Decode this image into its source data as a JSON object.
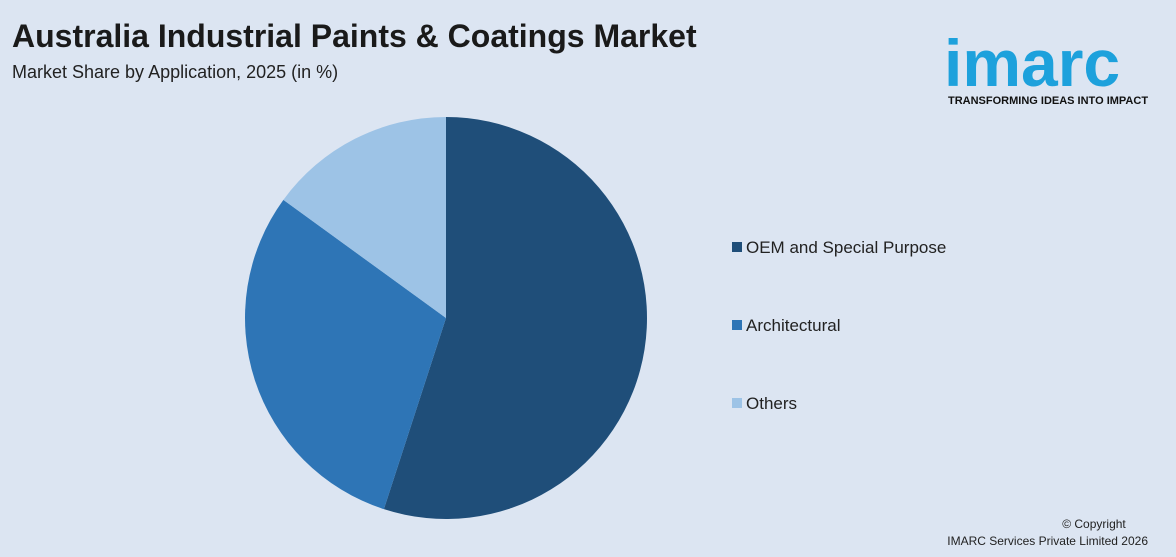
{
  "chart_data": {
    "type": "pie",
    "title": "Australia Industrial Paints & Coatings Market",
    "subtitle": "Market Share by Application, 2025 (in %)",
    "categories": [
      "OEM and Special Purpose",
      "Architectural",
      "Others"
    ],
    "values": [
      55,
      30,
      15
    ],
    "colors": [
      "#1f4e79",
      "#2e75b6",
      "#9dc3e6"
    ],
    "legend": "right"
  },
  "logo": {
    "name": "imarc",
    "tagline": "TRANSFORMING IDEAS INTO IMPACT"
  },
  "footer": {
    "copyright": "© Copyright",
    "company": "IMARC Services Private Limited 2026"
  }
}
